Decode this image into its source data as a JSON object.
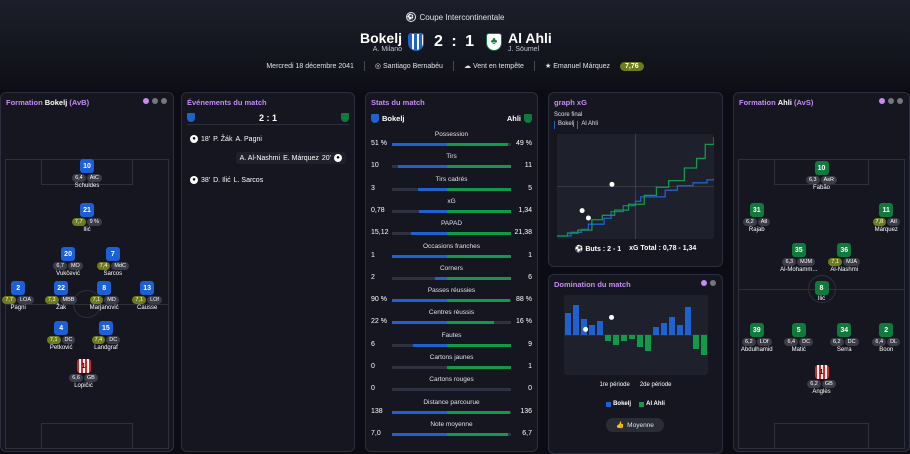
{
  "header": {
    "competition": "Coupe Intercontinentale",
    "home": {
      "name": "Bokelj",
      "coach": "A. Milano"
    },
    "away": {
      "name": "Al Ahli",
      "coach": "J. Söumel"
    },
    "score": "2 : 1",
    "date": "Mercredi 18 décembre 2041",
    "stadium": "Santiago Bernabéu",
    "weather": "Vent en tempête",
    "referee": "Emanuel Márquez",
    "referee_rating": "7,76"
  },
  "colors": {
    "home": "#1e62d0",
    "away": "#109a4c",
    "accent": "#c58cf7",
    "rating": "#6e7a1c"
  },
  "formation_home": {
    "title_prefix": "Formation",
    "team": "Bokelj",
    "formation": "(AvB)",
    "players": [
      {
        "num": "10",
        "rating": "6,4",
        "pos": "AtC",
        "name": "Schuldes",
        "hl": false
      },
      {
        "num": "21",
        "rating": "7,7",
        "pos": "9 %",
        "name": "Ilić",
        "hl": true
      },
      {
        "num": "20",
        "rating": "6,7",
        "pos": "MO",
        "name": "Vukčević",
        "hl": false
      },
      {
        "num": "7",
        "rating": "7,4",
        "pos": "MdC",
        "name": "Sarcos",
        "hl": true
      },
      {
        "num": "2",
        "rating": "7,7",
        "pos": "LOA",
        "name": "Pagni",
        "hl": true
      },
      {
        "num": "22",
        "rating": "7,3",
        "pos": "MBB",
        "name": "Žak",
        "hl": true
      },
      {
        "num": "8",
        "rating": "7,1",
        "pos": "MD",
        "name": "Marjanović",
        "hl": true
      },
      {
        "num": "13",
        "rating": "7,1",
        "pos": "LOf",
        "name": "Causse",
        "hl": true
      },
      {
        "num": "4",
        "rating": "7,1",
        "pos": "DC",
        "name": "Petković",
        "hl": true
      },
      {
        "num": "15",
        "rating": "7,4",
        "pos": "DC",
        "name": "Landgraf",
        "hl": true
      },
      {
        "num": "1",
        "rating": "6,6",
        "pos": "GB",
        "name": "Lopičić",
        "hl": false
      }
    ]
  },
  "events": {
    "title": "Événements du match",
    "score": "2 : 1",
    "items": [
      {
        "minute": "18'",
        "scorer": "P. Žák",
        "assist": "A. Pagni",
        "side": "home"
      },
      {
        "minute": "20'",
        "scorer": "E. Márquez",
        "assist": "A. Al-Nashmi",
        "side": "away"
      },
      {
        "minute": "38'",
        "scorer": "D. Ilić",
        "assist": "L. Sarcos",
        "side": "home"
      }
    ]
  },
  "stats": {
    "title": "Stats du match",
    "home": "Bokelj",
    "away": "Ahli",
    "rows": [
      {
        "label": "Possession",
        "home": "51 %",
        "away": "49 %",
        "hv": 51,
        "av": 49
      },
      {
        "label": "Tirs",
        "home": "10",
        "away": "11",
        "hv": 10,
        "av": 11
      },
      {
        "label": "Tirs cadrés",
        "home": "3",
        "away": "5",
        "hv": 3,
        "av": 5
      },
      {
        "label": "xG",
        "home": "0,78",
        "away": "1,34",
        "hv": 0.78,
        "av": 1.34
      },
      {
        "label": "PAPAD",
        "home": "15,12",
        "away": "21,38",
        "hv": 15.12,
        "av": 21.38
      },
      {
        "label": "Occasions franches",
        "home": "1",
        "away": "1",
        "hv": 1,
        "av": 1
      },
      {
        "label": "Corners",
        "home": "2",
        "away": "6",
        "hv": 2,
        "av": 6
      },
      {
        "label": "Passes réussies",
        "home": "90 %",
        "away": "88 %",
        "hv": 90,
        "av": 88
      },
      {
        "label": "Centres réussis",
        "home": "22 %",
        "away": "16 %",
        "hv": 22,
        "av": 16
      },
      {
        "label": "Fautes",
        "home": "6",
        "away": "9",
        "hv": 6,
        "av": 9
      },
      {
        "label": "Cartons jaunes",
        "home": "0",
        "away": "1",
        "hv": 0,
        "av": 1
      },
      {
        "label": "Cartons rouges",
        "home": "0",
        "away": "0",
        "hv": 0,
        "av": 0
      },
      {
        "label": "Distance parcourue",
        "home": "138",
        "away": "136",
        "hv": 138,
        "av": 136
      },
      {
        "label": "Note moyenne",
        "home": "7,0",
        "away": "6,7",
        "hv": 7.0,
        "av": 6.7
      }
    ]
  },
  "xg": {
    "title": "graph xG",
    "subtitle": "Score final",
    "legend_home": "Bokelj",
    "legend_away": "Al Ahli",
    "goals_label": "Buts : 2 - 1",
    "total_label": "xG Total : 0,78 - 1,34"
  },
  "domination": {
    "title": "Domination du match",
    "first_half": "1re période",
    "second_half": "2de période",
    "legend_home": "Bokelj",
    "legend_away": "Al Ahli",
    "button": "Moyenne"
  },
  "chart_data": [
    {
      "type": "line",
      "title": "graph xG",
      "x_domain": [
        0,
        90
      ],
      "y_domain": [
        0,
        1.34
      ],
      "series": [
        {
          "name": "Bokelj",
          "x": [
            0,
            8,
            14,
            18,
            27,
            31,
            38,
            45,
            48,
            62,
            69,
            78,
            86,
            90
          ],
          "y": [
            0,
            0.05,
            0.09,
            0.16,
            0.24,
            0.33,
            0.41,
            0.47,
            0.53,
            0.62,
            0.68,
            0.72,
            0.76,
            0.78
          ]
        },
        {
          "name": "Al Ahli",
          "x": [
            0,
            6,
            12,
            20,
            26,
            33,
            41,
            50,
            57,
            64,
            73,
            80,
            85,
            90
          ],
          "y": [
            0,
            0.04,
            0.08,
            0.22,
            0.28,
            0.35,
            0.43,
            0.55,
            0.66,
            0.75,
            0.92,
            1.05,
            1.24,
            1.34
          ]
        }
      ]
    },
    {
      "type": "bar",
      "title": "Domination du match",
      "categories": [
        "1",
        "2",
        "3",
        "4",
        "5",
        "6",
        "7",
        "8",
        "9",
        "10",
        "11",
        "12",
        "13",
        "14",
        "15",
        "16",
        "17",
        "18"
      ],
      "series": [
        {
          "name": "Bokelj",
          "values": [
            0.55,
            0.75,
            0.4,
            0.25,
            0.35,
            0,
            0,
            0,
            0,
            0,
            0,
            0.2,
            0.3,
            0.45,
            0.25,
            0.7,
            0,
            0
          ]
        },
        {
          "name": "Al Ahli",
          "values": [
            0,
            0,
            0,
            0,
            0,
            0.15,
            0.25,
            0.15,
            0.1,
            0.3,
            0.4,
            0,
            0,
            0,
            0,
            0,
            0.35,
            0.5
          ]
        }
      ],
      "xlabels": [
        "1re période",
        "2de période"
      ]
    }
  ],
  "formation_away": {
    "title_prefix": "Formation",
    "team": "Ahli",
    "formation": "(AvS)",
    "players": [
      {
        "num": "10",
        "rating": "6,3",
        "pos": "AsR",
        "name": "Fabão",
        "hl": false
      },
      {
        "num": "31",
        "rating": "6,2",
        "pos": "AtI",
        "name": "Rajab",
        "hl": false
      },
      {
        "num": "11",
        "rating": "7,8",
        "pos": "AtI",
        "name": "Márquez",
        "hl": true
      },
      {
        "num": "35",
        "rating": "6,3",
        "pos": "MJM",
        "name": "Al-Mohamm...",
        "hl": false
      },
      {
        "num": "36",
        "rating": "7,1",
        "pos": "MJA",
        "name": "Al-Nashmi",
        "hl": true
      },
      {
        "num": "8",
        "rating": "",
        "pos": "",
        "name": "Ilić",
        "hl": false
      },
      {
        "num": "39",
        "rating": "6,2",
        "pos": "LOf",
        "name": "Abdulhamid",
        "hl": false
      },
      {
        "num": "5",
        "rating": "6,4",
        "pos": "DC",
        "name": "Matić",
        "hl": false
      },
      {
        "num": "34",
        "rating": "6,2",
        "pos": "DC",
        "name": "Serra",
        "hl": false
      },
      {
        "num": "2",
        "rating": "6,4",
        "pos": "DL",
        "name": "Boon",
        "hl": false
      },
      {
        "num": "1",
        "rating": "6,2",
        "pos": "GB",
        "name": "Anglès",
        "hl": false
      }
    ]
  }
}
